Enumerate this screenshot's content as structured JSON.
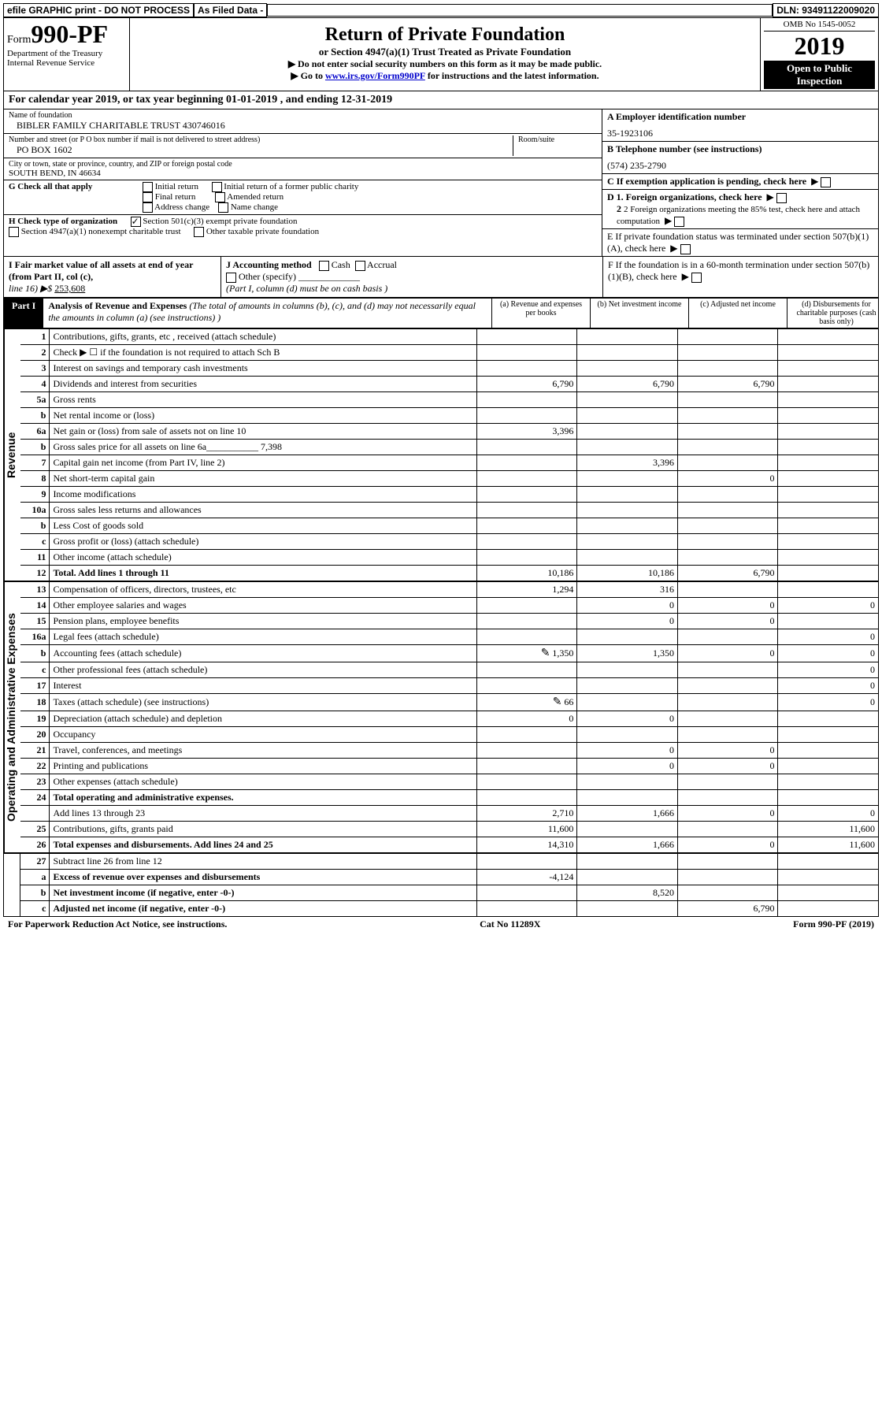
{
  "topbar": {
    "efile": "efile GRAPHIC print - DO NOT PROCESS",
    "asfiled": "As Filed Data -",
    "dln": "DLN: 93491122009020"
  },
  "header": {
    "form_prefix": "Form",
    "form_num": "990-PF",
    "dept1": "Department of the Treasury",
    "dept2": "Internal Revenue Service",
    "title": "Return of Private Foundation",
    "subtitle": "or Section 4947(a)(1) Trust Treated as Private Foundation",
    "warn1": "▶ Do not enter social security numbers on this form as it may be made public.",
    "warn2_pre": "▶ Go to ",
    "warn2_link": "www.irs.gov/Form990PF",
    "warn2_post": " for instructions and the latest information.",
    "omb": "OMB No 1545-0052",
    "year": "2019",
    "open1": "Open to Public",
    "open2": "Inspection"
  },
  "cal_year": "For calendar year 2019, or tax year beginning 01-01-2019              , and ending 12-31-2019",
  "info": {
    "name_lbl": "Name of foundation",
    "name_val": "BIBLER FAMILY CHARITABLE TRUST 430746016",
    "addr_lbl": "Number and street (or P O  box number if mail is not delivered to street address)",
    "addr_val": "PO BOX 1602",
    "room_lbl": "Room/suite",
    "city_lbl": "City or town, state or province, country, and ZIP or foreign postal code",
    "city_val": "SOUTH BEND, IN  46634",
    "ein_lbl": "A Employer identification number",
    "ein_val": "35-1923106",
    "tel_lbl": "B Telephone number (see instructions)",
    "tel_val": "(574) 235-2790",
    "c_lbl": "C If exemption application is pending, check here",
    "g_lbl": "G Check all that apply",
    "g_opts": {
      "initial": "Initial return",
      "initial_former": "Initial return of a former public charity",
      "final": "Final return",
      "amended": "Amended return",
      "addr_change": "Address change",
      "name_change": "Name change"
    },
    "h_lbl": "H Check type of organization",
    "h_501c3": "Section 501(c)(3) exempt private foundation",
    "h_4947": "Section 4947(a)(1) nonexempt charitable trust",
    "h_other": "Other taxable private foundation",
    "d_lbl": "D 1. Foreign organizations, check here",
    "d2_lbl": "2 Foreign organizations meeting the 85% test, check here and attach computation",
    "e_lbl": "E  If private foundation status was terminated under section 507(b)(1)(A), check here",
    "f_lbl": "F  If the foundation is in a 60-month termination under section 507(b)(1)(B), check here",
    "i_lbl": "I Fair market value of all assets at end of year (from Part II, col  (c),",
    "i_line": "line 16)  ▶$ ",
    "i_val": "253,608",
    "j_lbl": "J Accounting method",
    "j_cash": "Cash",
    "j_accrual": "Accrual",
    "j_other": "Other (specify)",
    "j_note": "(Part I, column (d) must be on cash basis )"
  },
  "part1": {
    "tab": "Part I",
    "title": "Analysis of Revenue and Expenses",
    "title_note": " (The total of amounts in columns (b), (c), and (d) may not necessarily equal the amounts in column (a) (see instructions) )",
    "col_a": "(a)   Revenue and expenses per books",
    "col_b": "(b)  Net investment income",
    "col_c": "(c)  Adjusted net income",
    "col_d": "(d)  Disbursements for charitable purposes (cash basis only)"
  },
  "rev_label": "Revenue",
  "rows_rev": [
    {
      "n": "1",
      "d": "Contributions, gifts, grants, etc , received (attach schedule)"
    },
    {
      "n": "2",
      "d": "Check ▶ ☐ if the foundation is not required to attach Sch  B"
    },
    {
      "n": "3",
      "d": "Interest on savings and temporary cash investments"
    },
    {
      "n": "4",
      "d": "Dividends and interest from securities",
      "a": "6,790",
      "b": "6,790",
      "c": "6,790"
    },
    {
      "n": "5a",
      "d": "Gross rents"
    },
    {
      "n": "b",
      "d": "Net rental income or (loss)"
    },
    {
      "n": "6a",
      "d": "Net gain or (loss) from sale of assets not on line 10",
      "a": "3,396"
    },
    {
      "n": "b",
      "d": "Gross sales price for all assets on line 6a___________  7,398"
    },
    {
      "n": "7",
      "d": "Capital gain net income (from Part IV, line 2)",
      "b": "3,396"
    },
    {
      "n": "8",
      "d": "Net short-term capital gain",
      "c": "0"
    },
    {
      "n": "9",
      "d": "Income modifications"
    },
    {
      "n": "10a",
      "d": "Gross sales less returns and allowances"
    },
    {
      "n": "b",
      "d": "Less   Cost of goods sold"
    },
    {
      "n": "c",
      "d": "Gross profit or (loss) (attach schedule)"
    },
    {
      "n": "11",
      "d": "Other income (attach schedule)"
    },
    {
      "n": "12",
      "d": "Total. Add lines 1 through 11",
      "bold": true,
      "a": "10,186",
      "b": "10,186",
      "c": "6,790"
    }
  ],
  "exp_label": "Operating and Administrative Expenses",
  "rows_exp": [
    {
      "n": "13",
      "d": "Compensation of officers, directors, trustees, etc",
      "a": "1,294",
      "b": "316"
    },
    {
      "n": "14",
      "d": "Other employee salaries and wages",
      "b": "0",
      "c": "0",
      "dcol": "0"
    },
    {
      "n": "15",
      "d": "Pension plans, employee benefits",
      "b": "0",
      "c": "0"
    },
    {
      "n": "16a",
      "d": "Legal fees (attach schedule)",
      "dcol": "0"
    },
    {
      "n": "b",
      "d": "Accounting fees (attach schedule)",
      "icon": true,
      "a": "1,350",
      "b": "1,350",
      "c": "0",
      "dcol": "0"
    },
    {
      "n": "c",
      "d": "Other professional fees (attach schedule)",
      "dcol": "0"
    },
    {
      "n": "17",
      "d": "Interest",
      "dcol": "0"
    },
    {
      "n": "18",
      "d": "Taxes (attach schedule) (see instructions)",
      "icon": true,
      "a": "66",
      "dcol": "0"
    },
    {
      "n": "19",
      "d": "Depreciation (attach schedule) and depletion",
      "a": "0",
      "b": "0"
    },
    {
      "n": "20",
      "d": "Occupancy"
    },
    {
      "n": "21",
      "d": "Travel, conferences, and meetings",
      "b": "0",
      "c": "0"
    },
    {
      "n": "22",
      "d": "Printing and publications",
      "b": "0",
      "c": "0"
    },
    {
      "n": "23",
      "d": "Other expenses (attach schedule)"
    },
    {
      "n": "24",
      "d": "Total operating and administrative expenses.",
      "bold": true
    },
    {
      "n": "",
      "d": "Add lines 13 through 23",
      "a": "2,710",
      "b": "1,666",
      "c": "0",
      "dcol": "0"
    },
    {
      "n": "25",
      "d": "Contributions, gifts, grants paid",
      "a": "11,600",
      "dcol": "11,600"
    },
    {
      "n": "26",
      "d": "Total expenses and disbursements. Add lines 24 and 25",
      "bold": true,
      "a": "14,310",
      "b": "1,666",
      "c": "0",
      "dcol": "11,600"
    }
  ],
  "rows_final": [
    {
      "n": "27",
      "d": "Subtract line 26 from line 12"
    },
    {
      "n": "a",
      "d": "Excess of revenue over expenses and disbursements",
      "bold": true,
      "a": "-4,124"
    },
    {
      "n": "b",
      "d": "Net investment income (if negative, enter -0-)",
      "bold": true,
      "b": "8,520"
    },
    {
      "n": "c",
      "d": "Adjusted net income (if negative, enter -0-)",
      "bold": true,
      "c": "6,790"
    }
  ],
  "footer": {
    "left": "For Paperwork Reduction Act Notice, see instructions.",
    "mid": "Cat  No  11289X",
    "right": "Form 990-PF (2019)"
  }
}
